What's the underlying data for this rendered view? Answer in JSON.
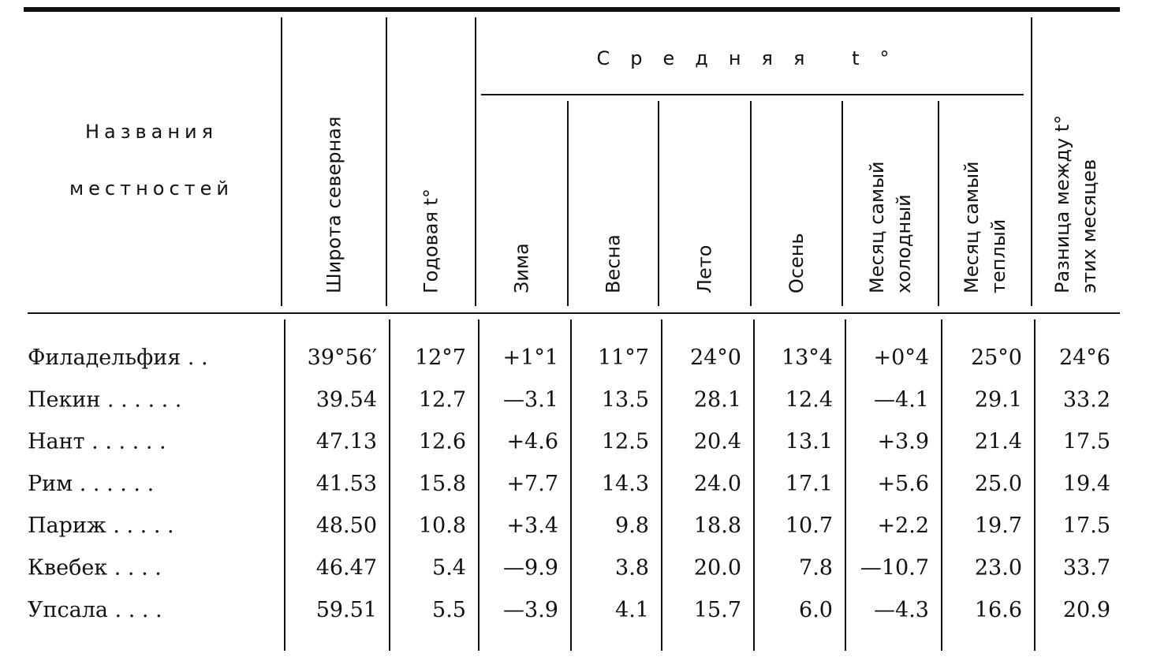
{
  "header": {
    "names": [
      "Названия",
      "местностей"
    ],
    "group": "Средняя t°",
    "columns": [
      [
        "Широта северная"
      ],
      [
        "Годовая t°"
      ],
      [
        "Зима"
      ],
      [
        "Весна"
      ],
      [
        "Лето"
      ],
      [
        "Осень"
      ],
      [
        "Месяц самый",
        "холодный"
      ],
      [
        "Месяц самый",
        "теплый"
      ],
      [
        "Разница между t°",
        "этих месяцев"
      ]
    ]
  },
  "table": {
    "rows": [
      [
        "Филадельфия . .",
        "39°56′",
        "12°7",
        "+1°1",
        "11°7",
        "24°0",
        "13°4",
        "+0°4",
        "25°0",
        "24°6"
      ],
      [
        "Пекин . . . . . .",
        "39.54",
        "12.7",
        "—3.1",
        "13.5",
        "28.1",
        "12.4",
        "—4.1",
        "29.1",
        "33.2"
      ],
      [
        "Нант . . . . . .",
        "47.13",
        "12.6",
        "+4.6",
        "12.5",
        "20.4",
        "13.1",
        "+3.9",
        "21.4",
        "17.5"
      ],
      [
        "Рим . . . . . .",
        "41.53",
        "15.8",
        "+7.7",
        "14.3",
        "24.0",
        "17.1",
        "+5.6",
        "25.0",
        "19.4"
      ],
      [
        "Париж . . . . .",
        "48.50",
        "10.8",
        "+3.4",
        "9.8",
        "18.8",
        "10.7",
        "+2.2",
        "19.7",
        "17.5"
      ],
      [
        "Квебек . . . .",
        "46.47",
        "5.4",
        "—9.9",
        "3.8",
        "20.0",
        "7.8",
        "—10.7",
        "23.0",
        "33.7"
      ],
      [
        "Упсала . . . .",
        "59.51",
        "5.5",
        "—3.9",
        "4.1",
        "15.7",
        "6.0",
        "—4.3",
        "16.6",
        "20.9"
      ]
    ]
  }
}
